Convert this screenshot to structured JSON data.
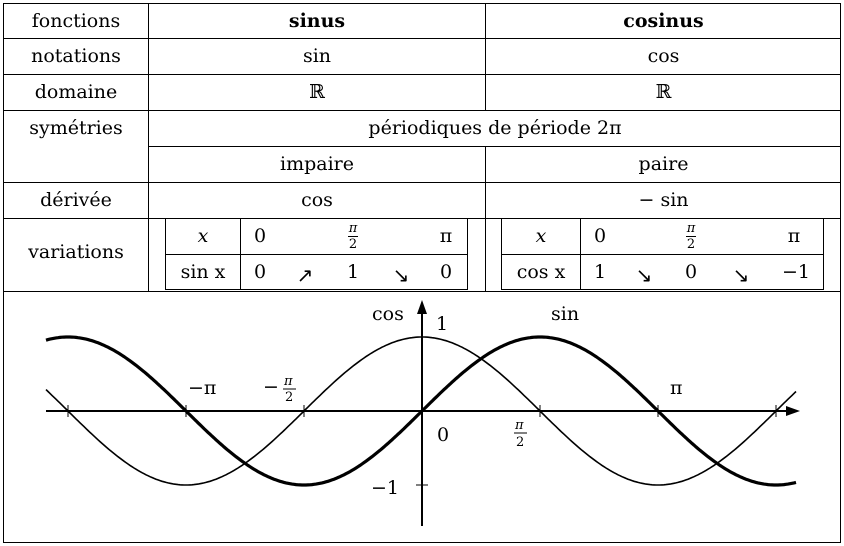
{
  "header": {
    "label": "fonctions",
    "sinus": "sinus",
    "cosinus": "cosinus"
  },
  "rows": {
    "notations": {
      "label": "notations",
      "sin": "sin",
      "cos": "cos"
    },
    "domaine": {
      "label": "domaine",
      "sin": "ℝ",
      "cos": "ℝ"
    },
    "symetries": {
      "label": "symétries",
      "common": "périodiques de période 2π",
      "sin": "impaire",
      "cos": "paire"
    },
    "derivee": {
      "label": "dérivée",
      "sin": "cos",
      "cos": "− sin"
    },
    "variations": {
      "label": "variations"
    }
  },
  "var_sin": {
    "x_label": "x",
    "f_label": "sin x",
    "x_values": [
      "0",
      "π",
      "2",
      "π"
    ],
    "f_values": [
      "0",
      "1",
      "0"
    ],
    "arrows": [
      "↗",
      "↘"
    ]
  },
  "var_cos": {
    "x_label": "x",
    "f_label": "cos x",
    "x_values": [
      "0",
      "π",
      "2",
      "π"
    ],
    "f_values": [
      "1",
      "0",
      "−1"
    ],
    "arrows": [
      "↘",
      "↘"
    ]
  },
  "graph": {
    "label_cos": "cos",
    "label_sin": "sin",
    "y_one": "1",
    "y_minus_one": "−1",
    "origin": "0",
    "minus_pi": "−π",
    "minus_half_pi_prefix": "−",
    "half_pi_num": "π",
    "half_pi_den": "2",
    "pi": "π"
  }
}
